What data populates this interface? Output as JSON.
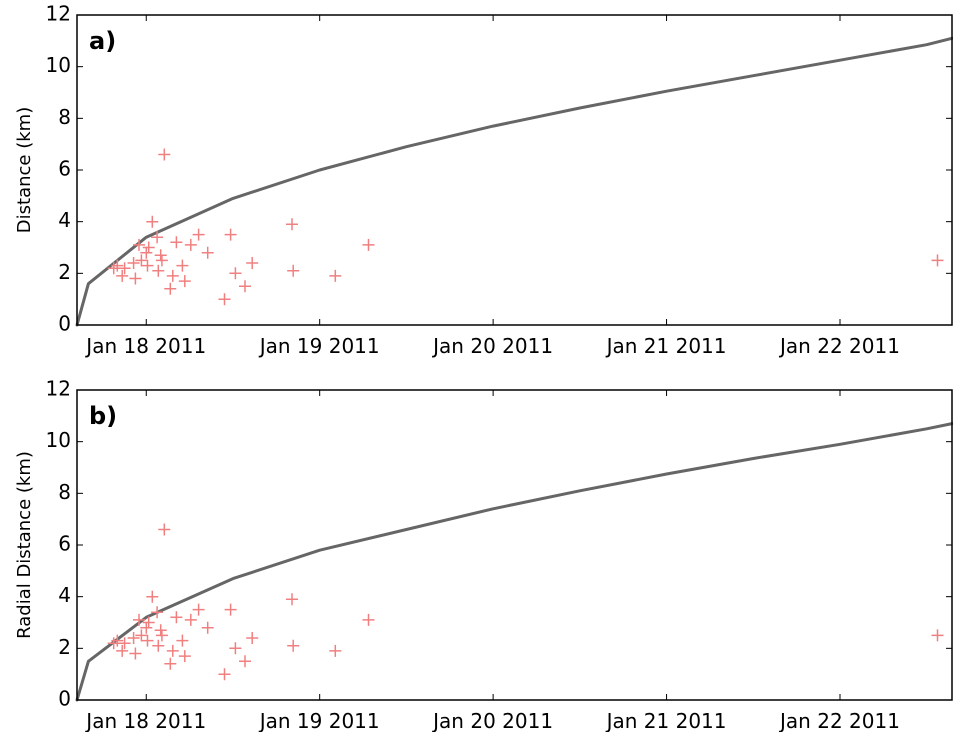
{
  "chart_data": [
    {
      "type": "scatter",
      "panel_label": "a)",
      "ylabel": "Distance (km)",
      "xlabel": "",
      "x_axis": "date",
      "xlim": [
        "2011-01-17 14:25",
        "2011-01-22 15:30"
      ],
      "ylim": [
        0,
        12
      ],
      "x_ticks": [
        "2011-01-18",
        "2011-01-19",
        "2011-01-20",
        "2011-01-21",
        "2011-01-22"
      ],
      "x_tick_labels": [
        "Jan 18 2011",
        "Jan 19 2011",
        "Jan 20 2011",
        "Jan 21 2011",
        "Jan 22 2011"
      ],
      "y_ticks": [
        0,
        2,
        4,
        6,
        8,
        10,
        12
      ],
      "y_tick_labels": [
        "0",
        "2",
        "4",
        "6",
        "8",
        "10",
        "12"
      ],
      "grid": false,
      "series": [
        {
          "kind": "line",
          "color": "#666666",
          "x": [
            "2011-01-17 14:25",
            "2011-01-17 16:00",
            "2011-01-18 00:00",
            "2011-01-18 12:00",
            "2011-01-19 00:00",
            "2011-01-19 12:00",
            "2011-01-20 00:00",
            "2011-01-20 12:00",
            "2011-01-21 00:00",
            "2011-01-21 12:00",
            "2011-01-22 00:00",
            "2011-01-22 12:00",
            "2011-01-22 15:30"
          ],
          "y": [
            0.0,
            1.6,
            3.4,
            4.9,
            6.0,
            6.9,
            7.7,
            8.4,
            9.05,
            9.65,
            10.25,
            10.85,
            11.1
          ]
        },
        {
          "kind": "markers",
          "marker": "plus",
          "color": "#f08080",
          "x": [
            "2011-01-17 19:30",
            "2011-01-17 20:00",
            "2011-01-17 20:40",
            "2011-01-17 21:00",
            "2011-01-17 22:15",
            "2011-01-17 22:30",
            "2011-01-17 23:00",
            "2011-01-17 23:20",
            "2011-01-18 00:00",
            "2011-01-18 00:10",
            "2011-01-18 00:20",
            "2011-01-18 00:50",
            "2011-01-18 01:30",
            "2011-01-18 01:40",
            "2011-01-18 02:00",
            "2011-01-18 02:10",
            "2011-01-18 02:30",
            "2011-01-18 03:20",
            "2011-01-18 03:40",
            "2011-01-18 04:10",
            "2011-01-18 05:00",
            "2011-01-18 05:20",
            "2011-01-18 06:10",
            "2011-01-18 07:15",
            "2011-01-18 08:30",
            "2011-01-18 10:50",
            "2011-01-18 11:40",
            "2011-01-18 12:20",
            "2011-01-18 13:40",
            "2011-01-18 14:40",
            "2011-01-18 20:10",
            "2011-01-18 20:20",
            "2011-01-19 02:10",
            "2011-01-19 06:45",
            "2011-01-22 13:30"
          ],
          "y": [
            2.2,
            2.3,
            1.9,
            2.2,
            2.4,
            1.8,
            3.1,
            2.5,
            2.8,
            2.3,
            3.0,
            4.0,
            3.4,
            2.1,
            2.7,
            2.5,
            6.6,
            1.4,
            1.9,
            3.2,
            2.3,
            1.7,
            3.1,
            3.5,
            2.8,
            1.0,
            3.5,
            2.0,
            1.5,
            2.4,
            3.9,
            2.1,
            1.9,
            3.1,
            2.5
          ]
        }
      ]
    },
    {
      "type": "scatter",
      "panel_label": "b)",
      "ylabel": "Radial Distance (km)",
      "xlabel": "",
      "x_axis": "date",
      "xlim": [
        "2011-01-17 14:25",
        "2011-01-22 15:30"
      ],
      "ylim": [
        0,
        12
      ],
      "x_ticks": [
        "2011-01-18",
        "2011-01-19",
        "2011-01-20",
        "2011-01-21",
        "2011-01-22"
      ],
      "x_tick_labels": [
        "Jan 18 2011",
        "Jan 19 2011",
        "Jan 20 2011",
        "Jan 21 2011",
        "Jan 22 2011"
      ],
      "y_ticks": [
        0,
        2,
        4,
        6,
        8,
        10,
        12
      ],
      "y_tick_labels": [
        "0",
        "2",
        "4",
        "6",
        "8",
        "10",
        "12"
      ],
      "grid": false,
      "series": [
        {
          "kind": "line",
          "color": "#666666",
          "x": [
            "2011-01-17 14:25",
            "2011-01-17 16:00",
            "2011-01-18 00:00",
            "2011-01-18 12:00",
            "2011-01-19 00:00",
            "2011-01-19 12:00",
            "2011-01-20 00:00",
            "2011-01-20 12:00",
            "2011-01-21 00:00",
            "2011-01-21 12:00",
            "2011-01-22 00:00",
            "2011-01-22 12:00",
            "2011-01-22 15:30"
          ],
          "y": [
            0.0,
            1.5,
            3.2,
            4.7,
            5.8,
            6.6,
            7.4,
            8.1,
            8.75,
            9.35,
            9.9,
            10.5,
            10.7
          ]
        },
        {
          "kind": "markers",
          "marker": "plus",
          "color": "#f08080",
          "x": [
            "2011-01-17 19:30",
            "2011-01-17 20:00",
            "2011-01-17 20:40",
            "2011-01-17 21:00",
            "2011-01-17 22:15",
            "2011-01-17 22:30",
            "2011-01-17 23:00",
            "2011-01-17 23:20",
            "2011-01-18 00:00",
            "2011-01-18 00:10",
            "2011-01-18 00:20",
            "2011-01-18 00:50",
            "2011-01-18 01:30",
            "2011-01-18 01:40",
            "2011-01-18 02:00",
            "2011-01-18 02:10",
            "2011-01-18 02:30",
            "2011-01-18 03:20",
            "2011-01-18 03:40",
            "2011-01-18 04:10",
            "2011-01-18 05:00",
            "2011-01-18 05:20",
            "2011-01-18 06:10",
            "2011-01-18 07:15",
            "2011-01-18 08:30",
            "2011-01-18 10:50",
            "2011-01-18 11:40",
            "2011-01-18 12:20",
            "2011-01-18 13:40",
            "2011-01-18 14:40",
            "2011-01-18 20:10",
            "2011-01-18 20:20",
            "2011-01-19 02:10",
            "2011-01-19 06:45",
            "2011-01-22 13:30"
          ],
          "y": [
            2.2,
            2.3,
            1.9,
            2.2,
            2.4,
            1.8,
            3.1,
            2.5,
            2.8,
            2.3,
            3.0,
            4.0,
            3.4,
            2.1,
            2.7,
            2.5,
            6.6,
            1.4,
            1.9,
            3.2,
            2.3,
            1.7,
            3.1,
            3.5,
            2.8,
            1.0,
            3.5,
            2.0,
            1.5,
            2.4,
            3.9,
            2.1,
            1.9,
            3.1,
            2.5
          ]
        }
      ]
    }
  ]
}
